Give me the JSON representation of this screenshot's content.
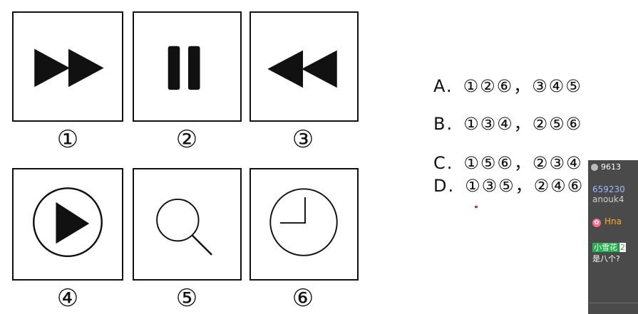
{
  "figures": [
    {
      "number": "①",
      "icon": "fast-forward-icon"
    },
    {
      "number": "②",
      "icon": "pause-icon"
    },
    {
      "number": "③",
      "icon": "rewind-icon"
    },
    {
      "number": "④",
      "icon": "play-circle-icon"
    },
    {
      "number": "⑤",
      "icon": "magnifier-icon"
    },
    {
      "number": "⑥",
      "icon": "clock-icon"
    }
  ],
  "options": [
    {
      "letter": "A.",
      "text": "①②⑥，③④⑤"
    },
    {
      "letter": "B.",
      "text": "①③④，②⑤⑥"
    },
    {
      "letter": "C.",
      "text": "①⑤⑥，②③④"
    },
    {
      "letter": "D.",
      "text": "①③⑤，②④⑥"
    }
  ],
  "chat": {
    "header": "9613",
    "lines": [
      "659230",
      "anouk4",
      "Hna",
      "是八个?"
    ],
    "tag": "小雪花",
    "tag2": "2"
  },
  "colors": {
    "ink": "#111111",
    "chat_bg": "#4a4a4a",
    "chat_tag": "#23b14d"
  }
}
